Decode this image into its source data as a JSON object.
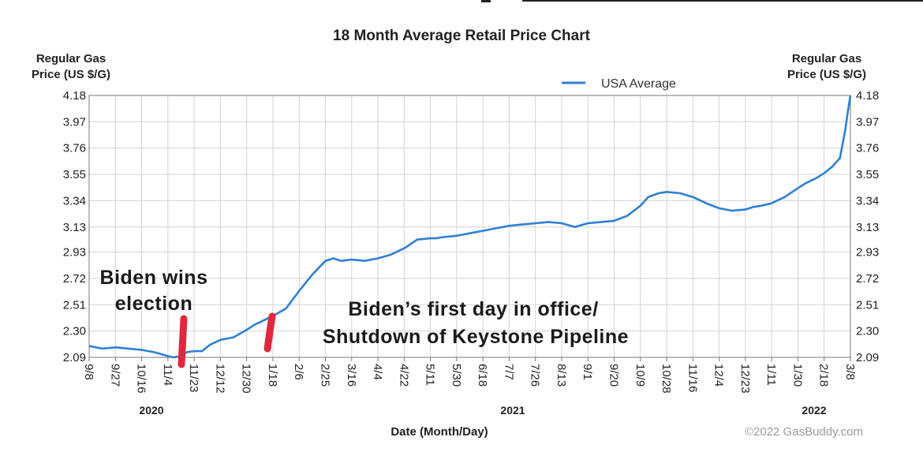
{
  "chart_data": {
    "type": "line",
    "title": "18 Month Average Retail Price Chart",
    "ylabel_left": [
      "Regular Gas",
      "Price (US $/G)"
    ],
    "ylabel_right": [
      "Regular Gas",
      "Price (US $/G)"
    ],
    "xlabel": "Date (Month/Day)",
    "yticks": [
      "2.09",
      "2.30",
      "2.51",
      "2.72",
      "2.93",
      "3.13",
      "3.34",
      "3.55",
      "3.76",
      "3.97",
      "4.18"
    ],
    "ylim": [
      2.09,
      4.18
    ],
    "xticks": [
      "9/8",
      "9/27",
      "10/16",
      "11/4",
      "11/23",
      "12/12",
      "12/30",
      "1/18",
      "2/6",
      "2/25",
      "3/16",
      "4/4",
      "4/22",
      "5/11",
      "5/30",
      "6/18",
      "7/7",
      "7/26",
      "8/13",
      "9/1",
      "9/20",
      "10/9",
      "10/28",
      "11/16",
      "12/4",
      "12/23",
      "1/11",
      "1/30",
      "2/18",
      "3/8"
    ],
    "years": [
      "2020",
      "2021",
      "2022"
    ],
    "legend": {
      "position": "top-right",
      "entries": [
        "USA Average"
      ]
    },
    "line_color": "#2f7fd6",
    "grid": true,
    "series": [
      {
        "name": "USA Average",
        "x": [
          0,
          0.5,
          1,
          1.5,
          2,
          2.5,
          3,
          3.2,
          3.5,
          3.7,
          4,
          4.3,
          4.6,
          5,
          5.5,
          6,
          6.3,
          6.6,
          7,
          7.5,
          8,
          8.5,
          9,
          9.3,
          9.6,
          10,
          10.5,
          11,
          11.5,
          12,
          12.5,
          13,
          13.2,
          13.5,
          14,
          14.5,
          15,
          15.5,
          16,
          16.5,
          17,
          17.5,
          18,
          18.5,
          19,
          19.5,
          20,
          20.5,
          21,
          21.3,
          21.7,
          22,
          22.5,
          23,
          23.5,
          24,
          24.5,
          25,
          25.3,
          25.6,
          26,
          26.5,
          27,
          27.3,
          27.7,
          28,
          28.3,
          28.6,
          28.8,
          28.9,
          29
        ],
        "values": [
          2.18,
          2.16,
          2.17,
          2.16,
          2.15,
          2.13,
          2.1,
          2.09,
          2.1,
          2.13,
          2.14,
          2.14,
          2.19,
          2.23,
          2.25,
          2.31,
          2.35,
          2.38,
          2.42,
          2.48,
          2.62,
          2.75,
          2.86,
          2.88,
          2.86,
          2.87,
          2.86,
          2.88,
          2.91,
          2.96,
          3.03,
          3.04,
          3.04,
          3.05,
          3.06,
          3.08,
          3.1,
          3.12,
          3.14,
          3.15,
          3.16,
          3.17,
          3.16,
          3.13,
          3.16,
          3.17,
          3.18,
          3.22,
          3.3,
          3.37,
          3.4,
          3.41,
          3.4,
          3.37,
          3.32,
          3.28,
          3.26,
          3.27,
          3.29,
          3.3,
          3.32,
          3.37,
          3.44,
          3.48,
          3.52,
          3.56,
          3.61,
          3.68,
          3.9,
          4.05,
          4.18
        ]
      }
    ],
    "annotations": [
      {
        "lines": [
          "Biden wins",
          "election"
        ],
        "at_x": 3.7
      },
      {
        "lines": [
          "Biden’s first day in office/",
          "Shutdown of Keystone Pipeline"
        ],
        "at_x": 7.4
      }
    ],
    "credit": "©2022 GasBuddy.com"
  }
}
